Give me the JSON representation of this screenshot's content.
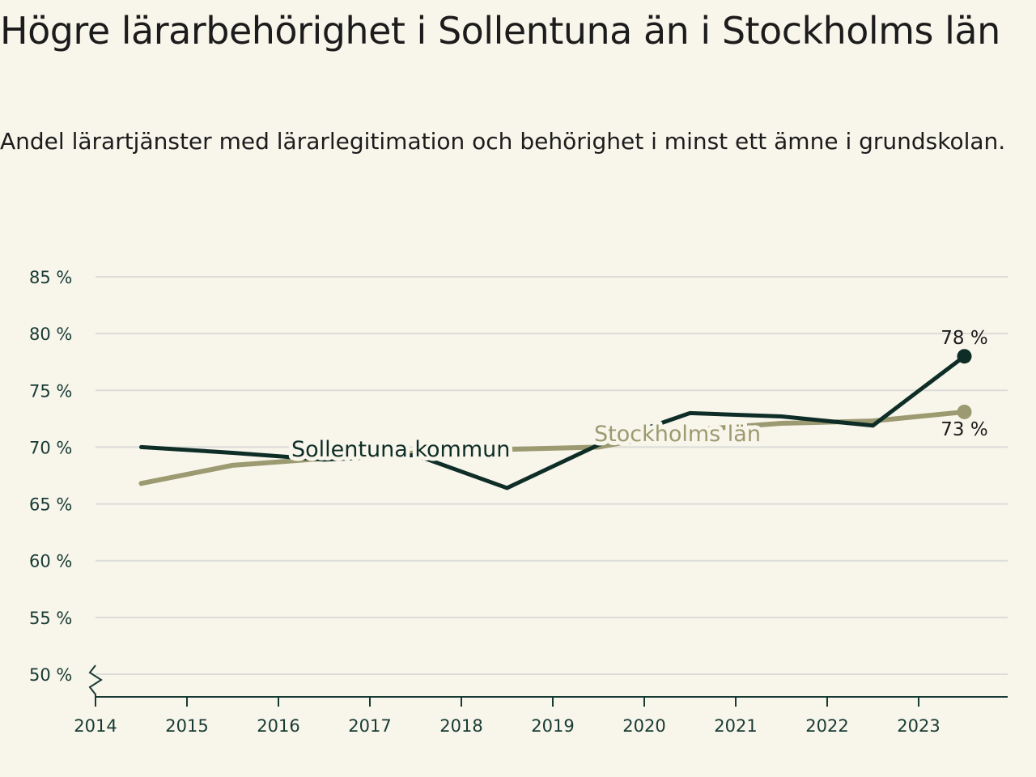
{
  "title": "Högre lärarbehörighet i Sollentuna än i Stockholms län",
  "subtitle": "Andel lärartjänster med lärarlegitimation och behörighet i minst ett ämne i grundskolan.",
  "colors": {
    "background": "#f8f5eb",
    "sollentuna": "#0e2d27",
    "stockholm": "#9b9a70",
    "grid": "#dcdcd8",
    "axis": "#173b34"
  },
  "chart_data": {
    "type": "line",
    "title": "Högre lärarbehörighet i Sollentuna än i Stockholms län",
    "subtitle": "Andel lärartjänster med lärarlegitimation och behörighet i minst ett ämne i grundskolan.",
    "xlabel": "",
    "ylabel": "",
    "x_ticks": [
      "2014",
      "2015",
      "2016",
      "2017",
      "2018",
      "2019",
      "2020",
      "2021",
      "2022",
      "2023"
    ],
    "y_ticks": [
      "50 %",
      "55 %",
      "60 %",
      "65 %",
      "70 %",
      "75 %",
      "80 %",
      "85 %"
    ],
    "y_tick_values": [
      50,
      55,
      60,
      65,
      70,
      75,
      80,
      85
    ],
    "ylim": [
      50,
      85
    ],
    "xlim": [
      2014,
      2024
    ],
    "y_axis_break": true,
    "grid": true,
    "series": [
      {
        "name": "Sollentuna kommun",
        "label": "Sollentuna kommun",
        "x": [
          2014.5,
          2015.5,
          2016.5,
          2017.5,
          2018.5,
          2019.5,
          2020.5,
          2021.5,
          2022.5,
          2023.5
        ],
        "values": [
          70.0,
          69.5,
          68.9,
          69.3,
          66.4,
          70.2,
          73.0,
          72.7,
          71.9,
          78.0
        ],
        "end_label": "78 %"
      },
      {
        "name": "Stockholms län",
        "label": "Stockholms län",
        "x": [
          2014.5,
          2015.5,
          2016.5,
          2017.5,
          2018.5,
          2019.5,
          2020.5,
          2021.5,
          2022.5,
          2023.5
        ],
        "values": [
          66.8,
          68.4,
          69.0,
          69.5,
          69.8,
          70.0,
          71.5,
          72.1,
          72.3,
          73.1
        ],
        "end_label": "73 %"
      }
    ]
  }
}
